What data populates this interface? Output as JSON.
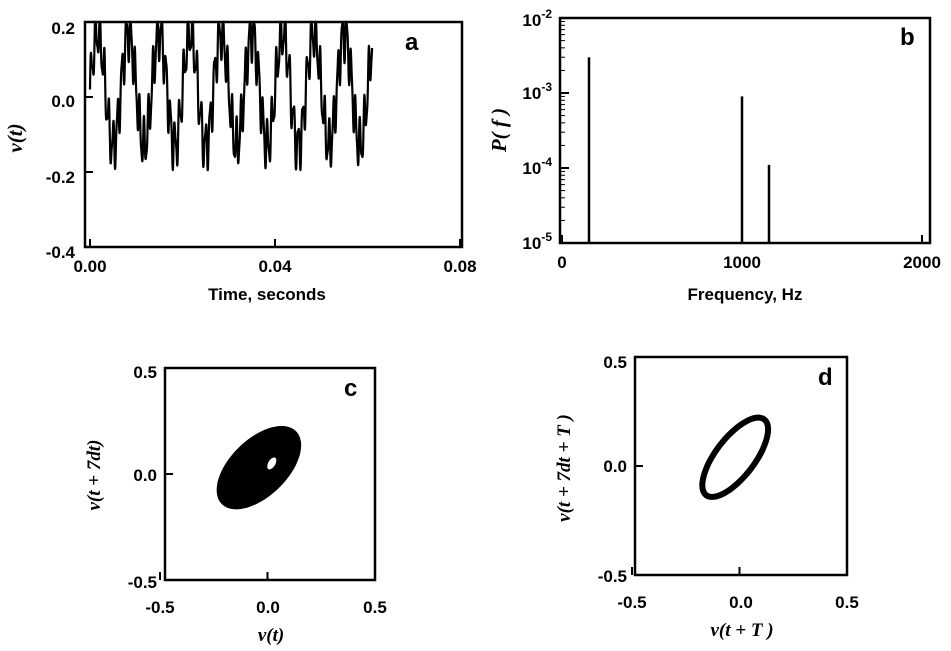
{
  "chart_data": [
    {
      "type": "line",
      "panel_label": "a",
      "xlabel": "Time, seconds",
      "ylabel": "v(t)",
      "xlim": [
        0,
        0.08
      ],
      "ylim": [
        -0.4,
        0.2
      ],
      "x_ticks": [
        "0.00",
        "0.04",
        "0.08"
      ],
      "y_ticks": [
        "0.2",
        "0.0",
        "-0.2",
        "-0.4"
      ],
      "signal": {
        "t_start": 0.0,
        "t_end": 0.061,
        "period": 0.00667,
        "low_amplitude": 0.2,
        "high_freq_amplitude": 0.06,
        "high_freq_ratio": 7,
        "samples": 1400
      }
    },
    {
      "type": "bar",
      "panel_label": "b",
      "xlabel": "Frequency, Hz",
      "ylabel": "P( f )",
      "xlim": [
        0,
        2000
      ],
      "ylim": [
        1e-05,
        0.01
      ],
      "log_y": true,
      "x_ticks": [
        "0",
        "1000",
        "2000"
      ],
      "y_ticks": [
        {
          "base": "10",
          "exp": "-2",
          "value": 0.01
        },
        {
          "base": "10",
          "exp": "-3",
          "value": 0.001
        },
        {
          "base": "10",
          "exp": "-4",
          "value": 0.0001
        },
        {
          "base": "10",
          "exp": "-5",
          "value": 1e-05
        }
      ],
      "x": [
        150,
        1000,
        1150
      ],
      "values": [
        0.003,
        0.0009,
        0.00011
      ]
    },
    {
      "type": "scatter",
      "panel_label": "c",
      "xlabel": "v(t)",
      "ylabel": "v(t + 7dt)",
      "xlim": [
        -0.5,
        0.5
      ],
      "ylim": [
        -0.5,
        0.5
      ],
      "x_ticks": [
        "-0.5",
        "0.0",
        "0.5"
      ],
      "y_ticks": [
        "0.5",
        "0.0",
        "-0.5"
      ],
      "attractor": {
        "center": [
          -0.04,
          0.03
        ],
        "semi_major": 0.24,
        "semi_minor": 0.13,
        "angle_deg": 45,
        "hole_semi_major": 0.035,
        "hole_semi_minor": 0.02
      }
    },
    {
      "type": "line",
      "panel_label": "d",
      "xlabel": "v(t + T )",
      "ylabel": "v(t + 7dt + T )",
      "xlim": [
        -0.5,
        0.5
      ],
      "ylim": [
        -0.5,
        0.5
      ],
      "x_ticks": [
        "-0.5",
        "0.0",
        "0.5"
      ],
      "y_ticks": [
        "0.5",
        "0.0",
        "-0.5"
      ],
      "loop": {
        "center": [
          -0.02,
          0.04
        ],
        "semi_major": 0.22,
        "semi_minor": 0.09,
        "angle_deg": 52
      }
    }
  ]
}
